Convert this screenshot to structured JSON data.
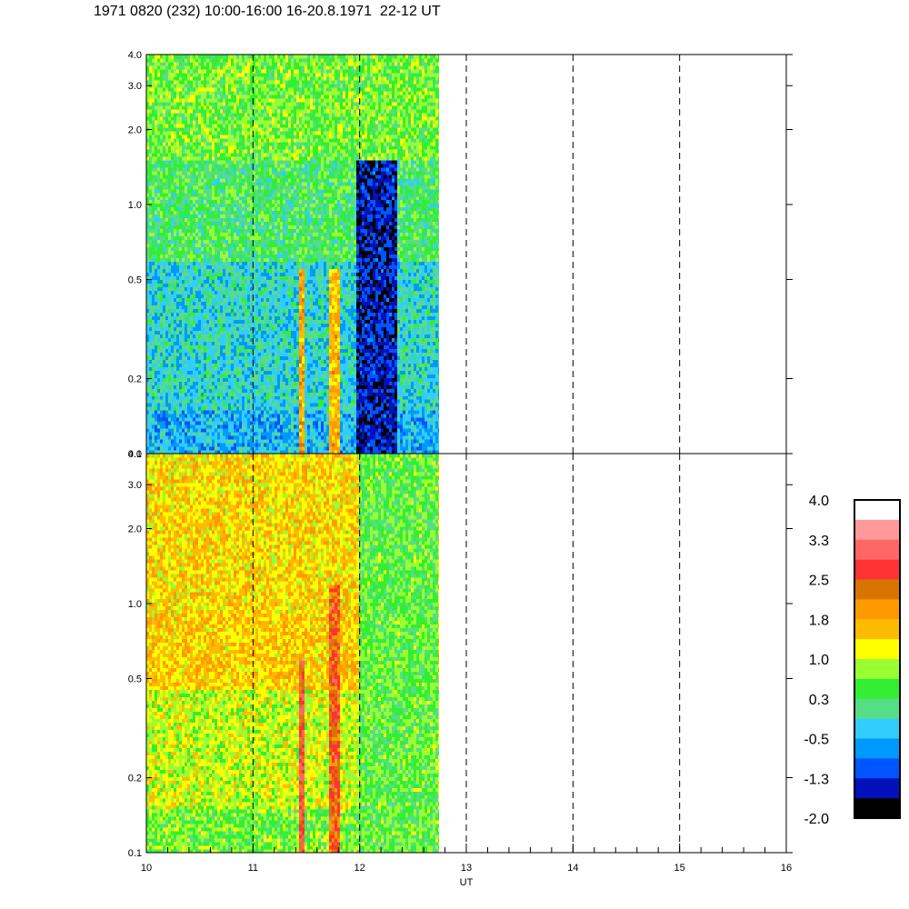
{
  "title": "1971 0820 (232) 10:00-16:00 16-20.8.1971  22-12 UT",
  "chart_data": [
    {
      "type": "heatmap",
      "panel": "top",
      "x": {
        "label": "",
        "range": [
          10,
          16
        ],
        "ticks": [
          "10",
          "11",
          "12",
          "13",
          "14",
          "15",
          "16"
        ],
        "minor_step": 0.2
      },
      "y": {
        "scale": "log",
        "range": [
          0.1,
          4.0
        ],
        "ticks": [
          "0.1",
          "0.2",
          "0.5",
          "1.0",
          "2.0",
          "3.0",
          "4.0"
        ]
      },
      "data_x_range": [
        10.0,
        12.74
      ],
      "dashed_hour_lines": [
        11,
        12,
        13,
        14,
        15
      ],
      "values_description_bands": [
        {
          "y": [
            0.1,
            0.15
          ],
          "level": -0.5
        },
        {
          "y": [
            0.15,
            0.6
          ],
          "level": -0.2
        },
        {
          "y": [
            0.6,
            1.5
          ],
          "level": 0.3
        },
        {
          "y": [
            1.5,
            4.0
          ],
          "level": 0.6
        }
      ],
      "features": [
        {
          "x": [
            11.42,
            11.48
          ],
          "y": [
            0.1,
            0.55
          ],
          "level": 1.8
        },
        {
          "x": [
            11.72,
            11.82
          ],
          "y": [
            0.1,
            0.55
          ],
          "level": 1.6
        },
        {
          "x": [
            11.98,
            12.35
          ],
          "y": [
            0.1,
            1.5
          ],
          "level": -1.4
        }
      ]
    },
    {
      "type": "heatmap",
      "panel": "bottom",
      "x": {
        "label": "UT",
        "range": [
          10,
          16
        ],
        "ticks": [
          "10",
          "11",
          "12",
          "13",
          "14",
          "15",
          "16"
        ],
        "minor_step": 0.2
      },
      "y": {
        "scale": "log",
        "range": [
          0.1,
          4.0
        ],
        "ticks": [
          "0.1",
          "0.2",
          "0.5",
          "1.0",
          "2.0",
          "3.0",
          "4.0"
        ]
      },
      "data_x_range": [
        10.0,
        12.74
      ],
      "dashed_hour_lines": [
        11,
        12,
        13,
        14,
        15
      ],
      "values_description_bands": [
        {
          "y": [
            0.1,
            0.15
          ],
          "level": 0.6
        },
        {
          "y": [
            0.15,
            0.45
          ],
          "level": 1.0
        },
        {
          "y": [
            0.45,
            0.9
          ],
          "level": 1.5
        },
        {
          "y": [
            0.9,
            4.0
          ],
          "level": 1.4
        }
      ],
      "features": [
        {
          "x": [
            11.42,
            11.48
          ],
          "y": [
            0.1,
            0.6
          ],
          "level": 2.7
        },
        {
          "x": [
            11.72,
            11.82
          ],
          "y": [
            0.1,
            1.2
          ],
          "level": 2.4
        },
        {
          "x": [
            12.0,
            12.74
          ],
          "y": [
            0.1,
            4.0
          ],
          "level": 0.5
        }
      ]
    }
  ],
  "colorbar": {
    "labels": [
      "4.0",
      "3.3",
      "2.5",
      "1.8",
      "1.0",
      "0.3",
      "-0.5",
      "-1.3",
      "-2.0"
    ],
    "colors": [
      "#ffffff",
      "#ff9999",
      "#ff6666",
      "#ff3333",
      "#d97400",
      "#ff9900",
      "#ffbb00",
      "#ffff00",
      "#99ff33",
      "#33ee33",
      "#55dd88",
      "#33ccff",
      "#0099ff",
      "#0055ff",
      "#0011bb",
      "#000000"
    ]
  }
}
